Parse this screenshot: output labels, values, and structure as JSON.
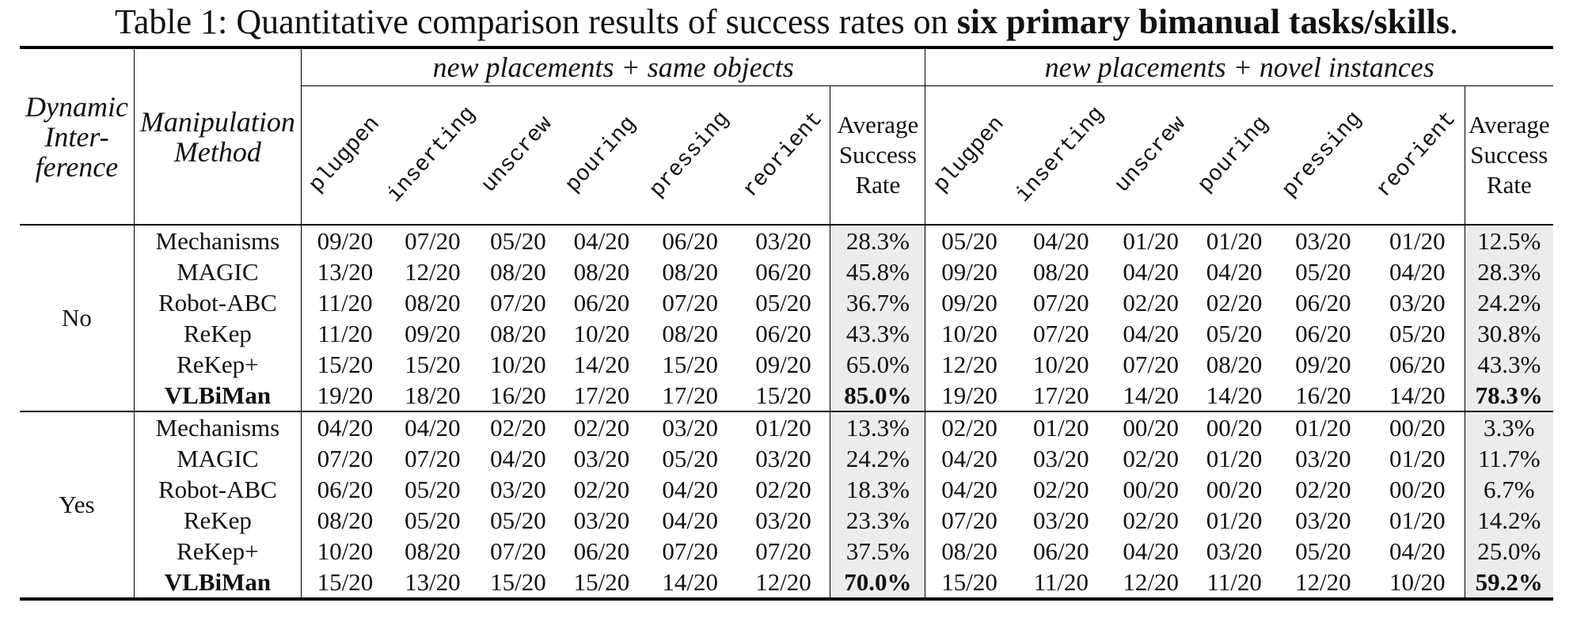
{
  "caption": {
    "prefix": "Table 1: Quantitative comparison results of success rates on ",
    "bold": "six primary bimanual tasks/skills",
    "suffix": "."
  },
  "headers": {
    "dynamic_interference": "Dynamic Inter- ference",
    "manipulation_method": "Manipulation Method",
    "group_same": "new placements + same objects",
    "group_novel": "new placements + novel instances",
    "tasks": [
      "plugpen",
      "inserting",
      "unscrew",
      "pouring",
      "pressing",
      "reorient"
    ],
    "average": "Average Success Rate"
  },
  "groups": [
    {
      "label": "No",
      "rows": [
        {
          "method": "Mechanisms",
          "same": [
            "09/20",
            "07/20",
            "05/20",
            "04/20",
            "06/20",
            "03/20"
          ],
          "same_avg": "28.3%",
          "novel": [
            "05/20",
            "04/20",
            "01/20",
            "01/20",
            "03/20",
            "01/20"
          ],
          "novel_avg": "12.5%"
        },
        {
          "method": "MAGIC",
          "same": [
            "13/20",
            "12/20",
            "08/20",
            "08/20",
            "08/20",
            "06/20"
          ],
          "same_avg": "45.8%",
          "novel": [
            "09/20",
            "08/20",
            "04/20",
            "04/20",
            "05/20",
            "04/20"
          ],
          "novel_avg": "28.3%"
        },
        {
          "method": "Robot-ABC",
          "same": [
            "11/20",
            "08/20",
            "07/20",
            "06/20",
            "07/20",
            "05/20"
          ],
          "same_avg": "36.7%",
          "novel": [
            "09/20",
            "07/20",
            "02/20",
            "02/20",
            "06/20",
            "03/20"
          ],
          "novel_avg": "24.2%"
        },
        {
          "method": "ReKep",
          "same": [
            "11/20",
            "09/20",
            "08/20",
            "10/20",
            "08/20",
            "06/20"
          ],
          "same_avg": "43.3%",
          "novel": [
            "10/20",
            "07/20",
            "04/20",
            "05/20",
            "06/20",
            "05/20"
          ],
          "novel_avg": "30.8%"
        },
        {
          "method": "ReKep+",
          "same": [
            "15/20",
            "15/20",
            "10/20",
            "14/20",
            "15/20",
            "09/20"
          ],
          "same_avg": "65.0%",
          "novel": [
            "12/20",
            "10/20",
            "07/20",
            "08/20",
            "09/20",
            "06/20"
          ],
          "novel_avg": "43.3%"
        },
        {
          "method": "VLBiMan",
          "same": [
            "19/20",
            "18/20",
            "16/20",
            "17/20",
            "17/20",
            "15/20"
          ],
          "same_avg": "85.0%",
          "novel": [
            "19/20",
            "17/20",
            "14/20",
            "14/20",
            "16/20",
            "14/20"
          ],
          "novel_avg": "78.3%"
        }
      ]
    },
    {
      "label": "Yes",
      "rows": [
        {
          "method": "Mechanisms",
          "same": [
            "04/20",
            "04/20",
            "02/20",
            "02/20",
            "03/20",
            "01/20"
          ],
          "same_avg": "13.3%",
          "novel": [
            "02/20",
            "01/20",
            "00/20",
            "00/20",
            "01/20",
            "00/20"
          ],
          "novel_avg": "3.3%"
        },
        {
          "method": "MAGIC",
          "same": [
            "07/20",
            "07/20",
            "04/20",
            "03/20",
            "05/20",
            "03/20"
          ],
          "same_avg": "24.2%",
          "novel": [
            "04/20",
            "03/20",
            "02/20",
            "01/20",
            "03/20",
            "01/20"
          ],
          "novel_avg": "11.7%"
        },
        {
          "method": "Robot-ABC",
          "same": [
            "06/20",
            "05/20",
            "03/20",
            "02/20",
            "04/20",
            "02/20"
          ],
          "same_avg": "18.3%",
          "novel": [
            "04/20",
            "02/20",
            "00/20",
            "00/20",
            "02/20",
            "00/20"
          ],
          "novel_avg": "6.7%"
        },
        {
          "method": "ReKep",
          "same": [
            "08/20",
            "05/20",
            "05/20",
            "03/20",
            "04/20",
            "03/20"
          ],
          "same_avg": "23.3%",
          "novel": [
            "07/20",
            "03/20",
            "02/20",
            "01/20",
            "03/20",
            "01/20"
          ],
          "novel_avg": "14.2%"
        },
        {
          "method": "ReKep+",
          "same": [
            "10/20",
            "08/20",
            "07/20",
            "06/20",
            "07/20",
            "07/20"
          ],
          "same_avg": "37.5%",
          "novel": [
            "08/20",
            "06/20",
            "04/20",
            "03/20",
            "05/20",
            "04/20"
          ],
          "novel_avg": "25.0%"
        },
        {
          "method": "VLBiMan",
          "same": [
            "15/20",
            "13/20",
            "15/20",
            "15/20",
            "14/20",
            "12/20"
          ],
          "same_avg": "70.0%",
          "novel": [
            "15/20",
            "11/20",
            "12/20",
            "11/20",
            "12/20",
            "10/20"
          ],
          "novel_avg": "59.2%"
        }
      ]
    }
  ],
  "bold_method": "VLBiMan",
  "colors": {
    "avg_bg": "#ececec",
    "rule": "#000000"
  }
}
